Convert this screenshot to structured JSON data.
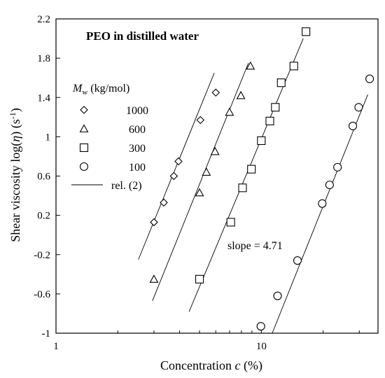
{
  "chart_data": {
    "type": "scatter",
    "title": "PEO in distilled water",
    "xlabel": {
      "main": "Concentration ",
      "italic": "c",
      "tail": " (%)"
    },
    "ylabel": {
      "main": "Shear viscosity log(",
      "italic": "η",
      "tail": ") (s",
      "sup": "-1",
      "close": ")"
    },
    "x_scale": "log",
    "xlim": [
      1,
      37
    ],
    "ylim": [
      -1,
      2.2
    ],
    "x_ticks": [
      1,
      10
    ],
    "x_tick_labels": [
      "1",
      "10"
    ],
    "y_ticks": [
      -1,
      -0.6,
      -0.2,
      0.2,
      0.6,
      1,
      1.4,
      1.8,
      2.2
    ],
    "y_tick_labels": [
      "-1",
      "-0.6",
      "-0.2",
      "0.2",
      "0.6",
      "1",
      "1.4",
      "1.8",
      "2.2"
    ],
    "legend": {
      "header": {
        "symbol": "M",
        "sub": "w",
        "rest": " (kg/mol)"
      },
      "placement": "upper-left",
      "line_label": "rel. (2)"
    },
    "annotation": "slope = 4.71",
    "series": [
      {
        "name": "1000",
        "marker": "diamond",
        "points": [
          [
            3.0,
            0.13
          ],
          [
            3.35,
            0.33
          ],
          [
            3.75,
            0.6
          ],
          [
            3.95,
            0.75
          ],
          [
            5.05,
            1.17
          ],
          [
            6.0,
            1.45
          ]
        ],
        "fit": [
          [
            2.52,
            -0.25
          ],
          [
            5.9,
            1.65
          ]
        ]
      },
      {
        "name": "600",
        "marker": "triangle",
        "points": [
          [
            3.0,
            -0.45
          ],
          [
            5.0,
            0.43
          ],
          [
            5.4,
            0.64
          ],
          [
            5.95,
            0.85
          ],
          [
            7.0,
            1.25
          ],
          [
            7.95,
            1.42
          ],
          [
            8.85,
            1.72
          ]
        ],
        "fit": [
          [
            2.95,
            -0.67
          ],
          [
            8.65,
            1.75
          ]
        ]
      },
      {
        "name": "300",
        "marker": "square",
        "points": [
          [
            5.0,
            -0.45
          ],
          [
            7.1,
            0.13
          ],
          [
            8.1,
            0.48
          ],
          [
            8.95,
            0.67
          ],
          [
            10.0,
            0.96
          ],
          [
            11.0,
            1.16
          ],
          [
            11.7,
            1.3
          ],
          [
            12.5,
            1.55
          ],
          [
            14.4,
            1.72
          ],
          [
            16.5,
            2.07
          ]
        ],
        "fit": [
          [
            4.45,
            -0.78
          ],
          [
            16.0,
            2.0
          ]
        ]
      },
      {
        "name": "100",
        "marker": "circle",
        "points": [
          [
            9.95,
            -0.93
          ],
          [
            12.0,
            -0.62
          ],
          [
            15.0,
            -0.26
          ],
          [
            19.8,
            0.32
          ],
          [
            21.5,
            0.51
          ],
          [
            23.5,
            0.69
          ],
          [
            27.9,
            1.11
          ],
          [
            29.8,
            1.3
          ],
          [
            33.7,
            1.59
          ]
        ],
        "fit": [
          [
            11.3,
            -1.0
          ],
          [
            33.0,
            1.43
          ]
        ]
      }
    ]
  }
}
